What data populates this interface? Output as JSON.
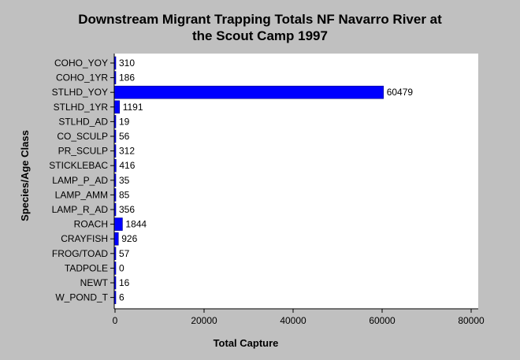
{
  "chart_data": {
    "type": "bar",
    "orientation": "horizontal",
    "title": [
      "Downstream Migrant Trapping Totals NF Navarro River at",
      "the Scout Camp 1997"
    ],
    "xlabel": "Total Capture",
    "ylabel": "Species/Age Class",
    "categories": [
      "COHO_YOY",
      "COHO_1YR",
      "STLHD_YOY",
      "STLHD_1YR",
      "STLHD_AD",
      "CO_SCULP",
      "PR_SCULP",
      "STICKLEBAC",
      "LAMP_P_AD",
      "LAMP_AMM",
      "LAMP_R_AD",
      "ROACH",
      "CRAYFISH",
      "FROG/TOAD",
      "TADPOLE",
      "NEWT",
      "W_POND_T"
    ],
    "values": [
      310,
      186,
      60479,
      1191,
      19,
      56,
      312,
      416,
      35,
      85,
      356,
      1844,
      926,
      57,
      0,
      16,
      6
    ],
    "value_labels": [
      "310",
      "186",
      "60479",
      "1191",
      "19",
      "56",
      "312",
      "416",
      "35",
      "85",
      "356",
      "1844",
      "926",
      "57",
      "0",
      "16",
      "6"
    ],
    "xlim": [
      0,
      80000
    ],
    "xticks": [
      0,
      20000,
      40000,
      60000,
      80000
    ],
    "xtick_labels": [
      "0",
      "20000",
      "40000",
      "60000",
      "80000"
    ],
    "grid": false,
    "legend": "none",
    "bar_color": "#0000ff",
    "plot_background": "#ffffff",
    "page_background": "#c0c0c0"
  }
}
